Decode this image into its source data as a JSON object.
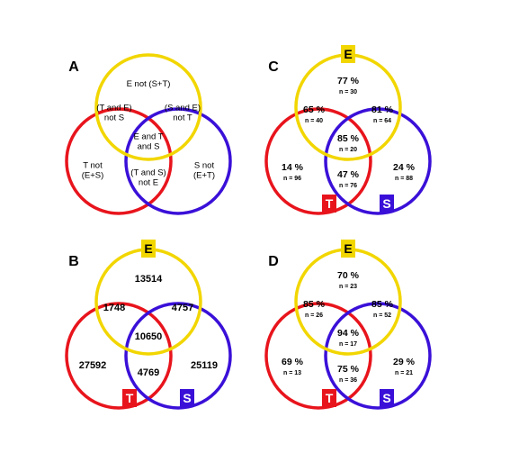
{
  "colors": {
    "E": "#f2d600",
    "T": "#e8141c",
    "S": "#3a10d8"
  },
  "panels": {
    "A": {
      "label": "A",
      "regions": {
        "e_only": [
          "E not (S+T)"
        ],
        "te": [
          "(T and E)",
          "not S"
        ],
        "se": [
          "(S and E)",
          "not T"
        ],
        "ets": [
          "E and T",
          "and S"
        ],
        "t_only": [
          "T not",
          "(E+S)"
        ],
        "ts": [
          "(T and S)",
          "not E"
        ],
        "s_only": [
          "S not",
          "(E+T)"
        ]
      }
    },
    "B": {
      "label": "B",
      "circle_tags": {
        "E": "E",
        "T": "T",
        "S": "S"
      },
      "regions": {
        "e_only": "13514",
        "te": "1748",
        "se": "4757",
        "ets": "10650",
        "t_only": "27592",
        "ts": "4769",
        "s_only": "25119"
      }
    },
    "C": {
      "label": "C",
      "circle_tags": {
        "E": "E",
        "T": "T",
        "S": "S"
      },
      "regions": {
        "e_only": {
          "pct": "77 %",
          "n": "n = 30"
        },
        "te": {
          "pct": "65 %",
          "n": "n = 40"
        },
        "se": {
          "pct": "81 %",
          "n": "n = 64"
        },
        "ets": {
          "pct": "85 %",
          "n": "n = 20"
        },
        "t_only": {
          "pct": "14 %",
          "n": "n = 96"
        },
        "ts": {
          "pct": "47 %",
          "n": "n = 76"
        },
        "s_only": {
          "pct": "24 %",
          "n": "n = 88"
        }
      }
    },
    "D": {
      "label": "D",
      "circle_tags": {
        "E": "E",
        "T": "T",
        "S": "S"
      },
      "regions": {
        "e_only": {
          "pct": "70 %",
          "n": "n = 23"
        },
        "te": {
          "pct": "85 %",
          "n": "n = 26"
        },
        "se": {
          "pct": "85 %",
          "n": "n = 52"
        },
        "ets": {
          "pct": "94 %",
          "n": "n = 17"
        },
        "t_only": {
          "pct": "69 %",
          "n": "n = 13"
        },
        "ts": {
          "pct": "75 %",
          "n": "n = 36"
        },
        "s_only": {
          "pct": "29 %",
          "n": "n = 21"
        }
      }
    }
  }
}
